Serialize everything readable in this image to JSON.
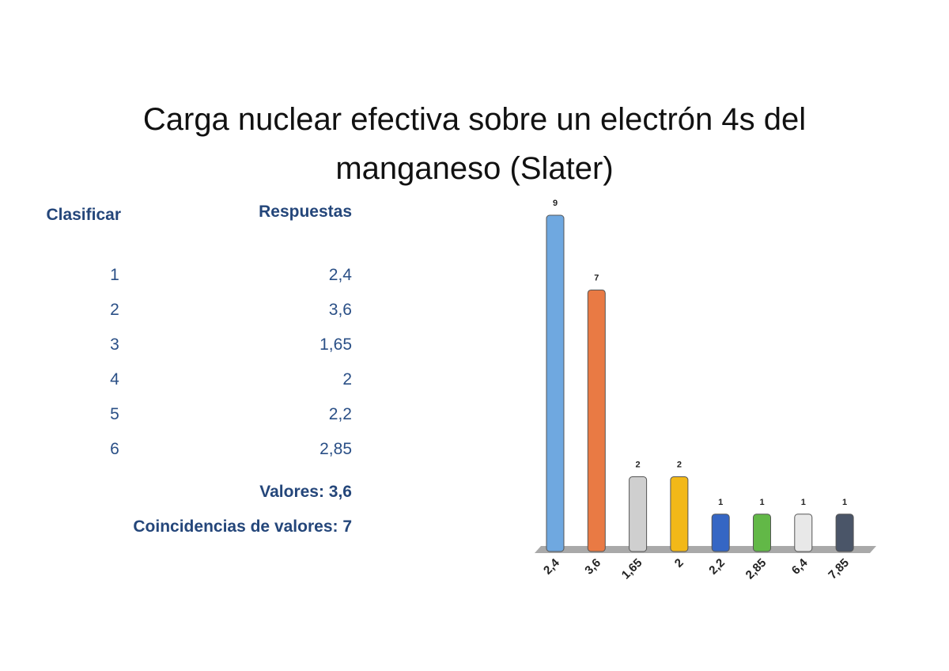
{
  "title": "Carga nuclear efectiva sobre un electrón 4s del manganeso (Slater)",
  "table": {
    "header": [
      "Clasificar",
      "Respuestas"
    ],
    "rows": [
      [
        "1",
        "2,4"
      ],
      [
        "2",
        "3,6"
      ],
      [
        "3",
        "1,65"
      ],
      [
        "4",
        "2"
      ],
      [
        "5",
        "2,2"
      ],
      [
        "6",
        "2,85"
      ]
    ]
  },
  "summary": [
    "Valores: 3,6",
    "Coincidencias de valores: 7"
  ],
  "chart_data": {
    "type": "bar",
    "categories": [
      "2,4",
      "3,6",
      "1,65",
      "2",
      "2,2",
      "2,85",
      "6,4",
      "7,85"
    ],
    "values": [
      9,
      7,
      2,
      2,
      1,
      1,
      1,
      1
    ],
    "colors": [
      "#6fa8e0",
      "#e97a44",
      "#cfcfcf",
      "#f2b818",
      "#3566c4",
      "#62b847",
      "#e8e8e8",
      "#4a5568"
    ]
  }
}
